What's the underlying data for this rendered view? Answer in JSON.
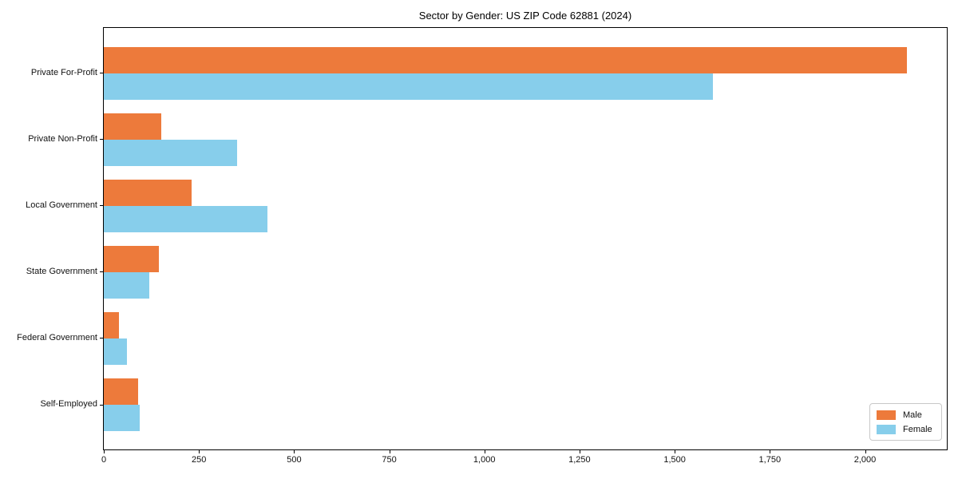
{
  "figure": {
    "background": "#ffffff",
    "frame_color": "#000000"
  },
  "chart_data": {
    "type": "bar",
    "orientation": "horizontal",
    "title": "Sector by Gender: US ZIP Code 62881 (2024)",
    "categories": [
      "Private For-Profit",
      "Private Non-Profit",
      "Local Government",
      "State Government",
      "Federal Government",
      "Self-Employed"
    ],
    "series": [
      {
        "name": "Male",
        "color": "#ED7A3B",
        "values": [
          2110,
          150,
          230,
          145,
          40,
          90
        ]
      },
      {
        "name": "Female",
        "color": "#87CEEB",
        "values": [
          1600,
          350,
          430,
          120,
          60,
          95
        ]
      }
    ],
    "xlim": [
      0,
      2215
    ],
    "xticks": [
      0,
      250,
      500,
      750,
      1000,
      1250,
      1500,
      1750,
      2000
    ],
    "xtick_labels": [
      "0",
      "250",
      "500",
      "750",
      "1,000",
      "1,250",
      "1,500",
      "1,750",
      "2,000"
    ],
    "grid": false,
    "legend_position": "lower-right"
  }
}
